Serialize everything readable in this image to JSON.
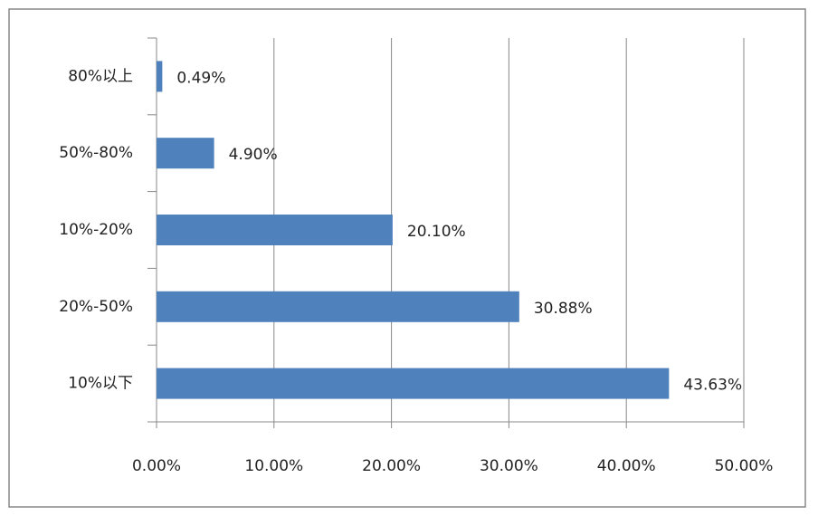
{
  "chart_data": {
    "type": "bar",
    "orientation": "horizontal",
    "categories": [
      "80%以上",
      "50%-80%",
      "10%-20%",
      "20%-50%",
      "10%以下"
    ],
    "values": [
      0.49,
      4.9,
      20.1,
      30.88,
      43.63
    ],
    "value_labels": [
      "0.49%",
      "4.90%",
      "20.10%",
      "30.88%",
      "43.63%"
    ],
    "color": "#4f81bd",
    "xlim": [
      0,
      50
    ],
    "xticks": [
      {
        "value": 0,
        "label": "0.00%"
      },
      {
        "value": 10,
        "label": "10.00%"
      },
      {
        "value": 20,
        "label": "20.00%"
      },
      {
        "value": 30,
        "label": "30.00%"
      },
      {
        "value": 40,
        "label": "40.00%"
      },
      {
        "value": 50,
        "label": "50.00%"
      }
    ],
    "grid": true
  }
}
